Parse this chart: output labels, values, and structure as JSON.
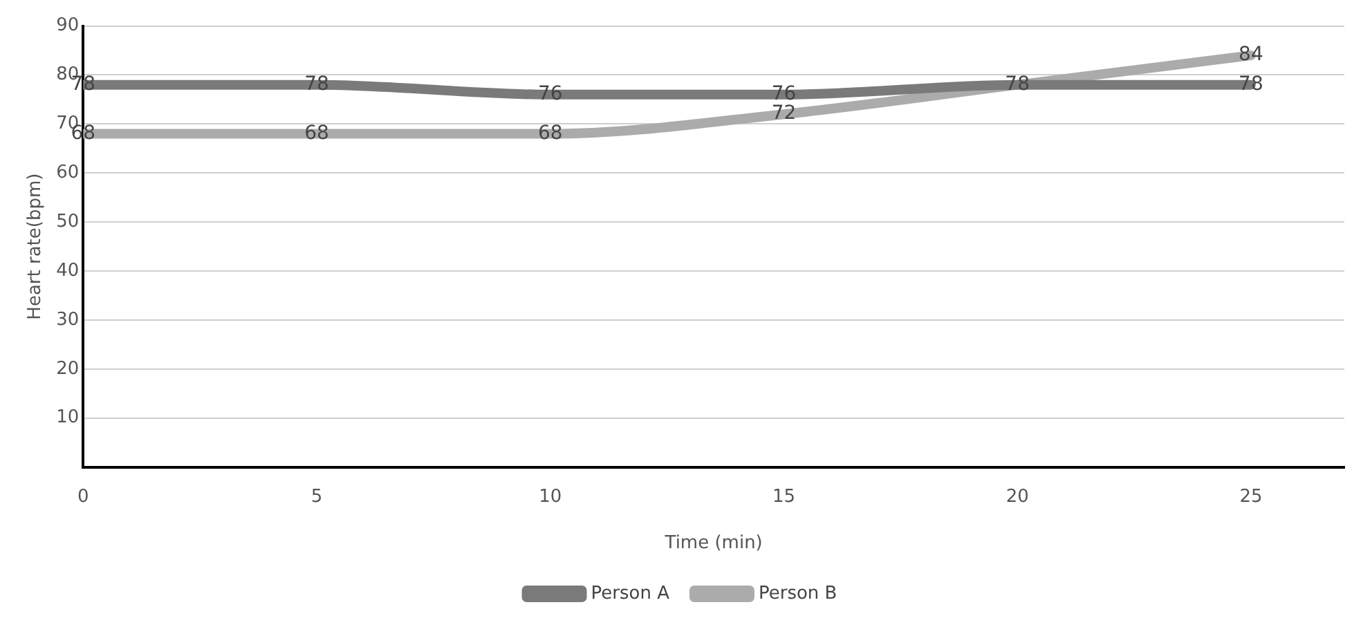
{
  "chart_data": {
    "type": "line",
    "xlabel": "Time (min)",
    "ylabel": "Heart rate(bpm)",
    "x": [
      0,
      5,
      10,
      15,
      20,
      25
    ],
    "series": [
      {
        "name": "Person A",
        "color": "#7a7a7a",
        "values": [
          78,
          78,
          76,
          76,
          78,
          78
        ],
        "value_labels": [
          "78",
          "78",
          "76",
          "76",
          null,
          "78"
        ]
      },
      {
        "name": "Person B",
        "color": "#ababab",
        "values": [
          68,
          68,
          68,
          72,
          78,
          84
        ],
        "value_labels": [
          "68",
          "68",
          "68",
          "72",
          "78",
          "84"
        ]
      }
    ],
    "xlim": [
      0,
      27
    ],
    "xticks": [
      0,
      5,
      10,
      15,
      20,
      25
    ],
    "ylim": [
      0,
      90
    ],
    "yticks": [
      {
        "value": 0,
        "label": null
      },
      10,
      20,
      30,
      40,
      50,
      60,
      70,
      80,
      90
    ],
    "grid": "y",
    "legend": "bottom",
    "marker": "none",
    "line_style": "solid"
  }
}
